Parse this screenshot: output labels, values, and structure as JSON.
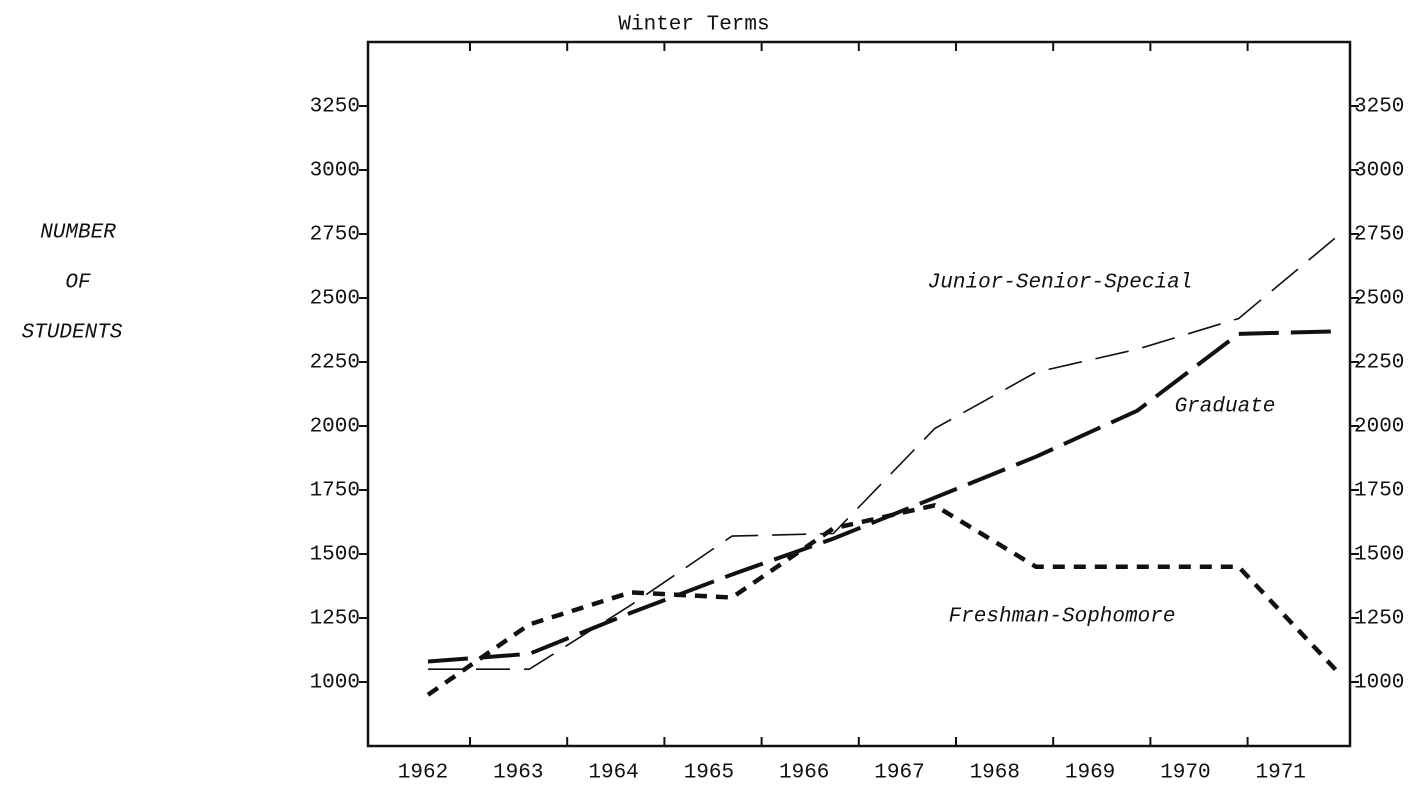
{
  "chart_data": {
    "type": "line",
    "title": "Winter Terms",
    "ylabel": [
      "NUMBER",
      "OF",
      "STUDENTS"
    ],
    "categories": [
      "1962",
      "1963",
      "1964",
      "1965",
      "1966",
      "1967",
      "1968",
      "1969",
      "1970",
      "1971"
    ],
    "series": [
      {
        "name": "Junior-Senior-Special",
        "color": "#111111",
        "values": [
          1050,
          1050,
          1300,
          1570,
          1580,
          1990,
          2210,
          2300,
          2420,
          2750
        ]
      },
      {
        "name": "Graduate",
        "color": "#111111",
        "values": [
          1080,
          1110,
          1270,
          1420,
          1560,
          1720,
          1880,
          2060,
          2360,
          2370
        ]
      },
      {
        "name": "Freshman-Sophomore",
        "color": "#111111",
        "values": [
          950,
          1225,
          1350,
          1330,
          1600,
          1690,
          1450,
          1450,
          1450,
          1030
        ]
      }
    ],
    "ylim": [
      750,
      3500
    ],
    "yticks": [
      1000,
      1250,
      1500,
      1750,
      2000,
      2250,
      2500,
      2750,
      3000,
      3250
    ]
  }
}
